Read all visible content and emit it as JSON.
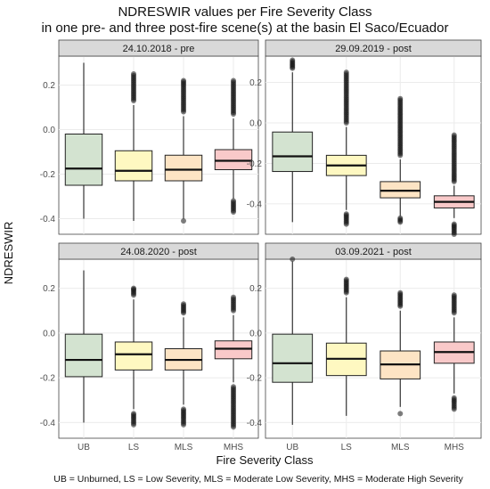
{
  "chart_data": {
    "type": "boxplot",
    "title": "NDRESWIR values per Fire Severity Class",
    "subtitle": "in one pre- and three post-fire scene(s) at the basin El Saco/Ecuador",
    "xlabel": "Fire Severity Class",
    "ylabel": "NDRESWIR",
    "caption": "UB = Unburned, LS = Low Severity, MLS = Moderate Low Severity, MHS = Moderate High Severity",
    "categories": [
      "UB",
      "LS",
      "MLS",
      "MHS"
    ],
    "colors": {
      "UB": "#d3e3d0",
      "LS": "#fef8c1",
      "MLS": "#fde4c4",
      "MHS": "#f9c9c9"
    },
    "y_ticks": [
      0.2,
      0.0,
      -0.2,
      -0.4
    ],
    "y_tick_labels": [
      "0.2",
      "0.0",
      "-0.2",
      "-0.4"
    ],
    "grid": true,
    "panels": [
      {
        "label": "24.10.2018 - pre",
        "ylim": [
          -0.47,
          0.33
        ],
        "boxes": [
          {
            "category": "UB",
            "whisker_low": -0.4,
            "q1": -0.25,
            "median": -0.175,
            "q3": -0.02,
            "whisker_high": 0.3,
            "outliers": []
          },
          {
            "category": "LS",
            "whisker_low": -0.41,
            "q1": -0.23,
            "median": -0.185,
            "q3": -0.095,
            "whisker_high": 0.11,
            "outliers": [
              0.13,
              0.16,
              0.19,
              0.22,
              0.25
            ]
          },
          {
            "category": "MLS",
            "whisker_low": -0.4,
            "q1": -0.23,
            "median": -0.18,
            "q3": -0.115,
            "whisker_high": 0.06,
            "outliers": [
              -0.41,
              0.08,
              0.11,
              0.14,
              0.17,
              0.2,
              0.22
            ]
          },
          {
            "category": "MHS",
            "whisker_low": -0.31,
            "q1": -0.18,
            "median": -0.14,
            "q3": -0.09,
            "whisker_high": 0.05,
            "outliers": [
              -0.37,
              -0.32,
              0.07,
              0.1,
              0.13,
              0.16,
              0.19,
              0.22
            ]
          }
        ]
      },
      {
        "label": "29.09.2019 - post",
        "ylim": [
          -0.55,
          0.33
        ],
        "boxes": [
          {
            "category": "UB",
            "whisker_low": -0.49,
            "q1": -0.24,
            "median": -0.165,
            "q3": -0.045,
            "whisker_high": 0.25,
            "outliers": [
              0.27,
              0.29,
              0.31
            ]
          },
          {
            "category": "LS",
            "whisker_low": -0.43,
            "q1": -0.26,
            "median": -0.21,
            "q3": -0.16,
            "whisker_high": -0.02,
            "outliers": [
              -0.5,
              -0.47,
              -0.45,
              0.0,
              0.05,
              0.1,
              0.15,
              0.2,
              0.25
            ]
          },
          {
            "category": "MLS",
            "whisker_low": -0.46,
            "q1": -0.37,
            "median": -0.335,
            "q3": -0.29,
            "whisker_high": -0.18,
            "outliers": [
              -0.49,
              -0.47,
              -0.16,
              -0.12,
              -0.08,
              -0.04,
              0.0,
              0.04,
              0.08,
              0.12
            ]
          },
          {
            "category": "MHS",
            "whisker_low": -0.47,
            "q1": -0.42,
            "median": -0.39,
            "q3": -0.36,
            "whisker_high": -0.31,
            "outliers": [
              -0.55,
              -0.52,
              -0.5,
              -0.29,
              -0.25,
              -0.2,
              -0.15,
              -0.1,
              -0.06
            ]
          }
        ]
      },
      {
        "label": "24.08.2020 - post",
        "ylim": [
          -0.47,
          0.33
        ],
        "boxes": [
          {
            "category": "UB",
            "whisker_low": -0.4,
            "q1": -0.195,
            "median": -0.12,
            "q3": -0.005,
            "whisker_high": 0.28,
            "outliers": []
          },
          {
            "category": "LS",
            "whisker_low": -0.34,
            "q1": -0.165,
            "median": -0.095,
            "q3": -0.04,
            "whisker_high": 0.15,
            "outliers": [
              -0.41,
              -0.38,
              -0.36,
              0.17,
              0.19,
              0.2
            ]
          },
          {
            "category": "MLS",
            "whisker_low": -0.32,
            "q1": -0.165,
            "median": -0.12,
            "q3": -0.07,
            "whisker_high": 0.07,
            "outliers": [
              -0.41,
              -0.38,
              -0.36,
              -0.34,
              0.09,
              0.11,
              0.13
            ]
          },
          {
            "category": "MHS",
            "whisker_low": -0.22,
            "q1": -0.115,
            "median": -0.07,
            "q3": -0.035,
            "whisker_high": 0.08,
            "outliers": [
              -0.42,
              -0.39,
              -0.36,
              -0.33,
              -0.3,
              -0.27,
              -0.24,
              0.1,
              0.13,
              0.16
            ]
          }
        ]
      },
      {
        "label": "03.09.2021 - post",
        "ylim": [
          -0.47,
          0.33
        ],
        "boxes": [
          {
            "category": "UB",
            "whisker_low": -0.41,
            "q1": -0.22,
            "median": -0.135,
            "q3": -0.005,
            "whisker_high": 0.32,
            "outliers": [
              0.33
            ]
          },
          {
            "category": "LS",
            "whisker_low": -0.37,
            "q1": -0.19,
            "median": -0.115,
            "q3": -0.045,
            "whisker_high": 0.16,
            "outliers": [
              0.18,
              0.2,
              0.22,
              0.24
            ]
          },
          {
            "category": "MLS",
            "whisker_low": -0.33,
            "q1": -0.205,
            "median": -0.14,
            "q3": -0.08,
            "whisker_high": 0.1,
            "outliers": [
              -0.36,
              0.12,
              0.14,
              0.16,
              0.18
            ]
          },
          {
            "category": "MHS",
            "whisker_low": -0.27,
            "q1": -0.135,
            "median": -0.085,
            "q3": -0.04,
            "whisker_high": 0.07,
            "outliers": [
              -0.34,
              -0.31,
              -0.29,
              0.09,
              0.12,
              0.15,
              0.17
            ]
          }
        ]
      }
    ]
  }
}
